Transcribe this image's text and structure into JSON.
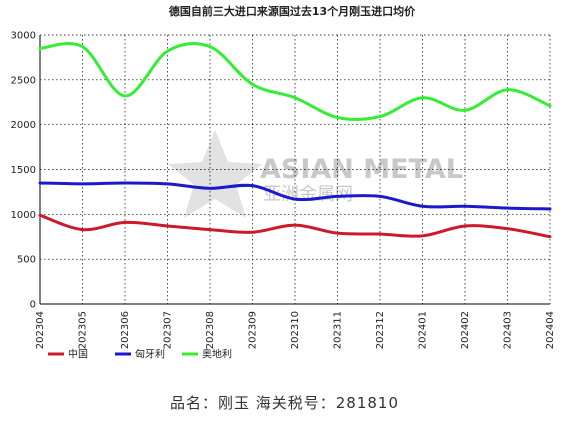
{
  "chart_data": {
    "type": "line",
    "title": "德国自前三大进口来源国过去13个月刚玉进口均价",
    "categories": [
      "202304",
      "202305",
      "202306",
      "202307",
      "202308",
      "202309",
      "202310",
      "202311",
      "202312",
      "202401",
      "202402",
      "202403",
      "202404"
    ],
    "ylim": [
      0,
      3000
    ],
    "yticks": [
      0,
      500,
      1000,
      1500,
      2000,
      2500,
      3000
    ],
    "grid": true,
    "legend_position": "bottom-left",
    "series": [
      {
        "name": "中国",
        "color": "#cc1a2a",
        "values": [
          990,
          830,
          910,
          870,
          830,
          800,
          880,
          790,
          780,
          760,
          870,
          840,
          750
        ]
      },
      {
        "name": "匈牙利",
        "color": "#1a1acc",
        "values": [
          1350,
          1340,
          1350,
          1340,
          1290,
          1320,
          1170,
          1200,
          1200,
          1090,
          1090,
          1070,
          1060
        ]
      },
      {
        "name": "奥地利",
        "color": "#33ee33",
        "values": [
          2850,
          2870,
          2320,
          2820,
          2870,
          2450,
          2300,
          2080,
          2090,
          2300,
          2160,
          2390,
          2210
        ]
      }
    ]
  },
  "watermark": {
    "brand": "ASIAN METAL",
    "brand_cn": "亚洲金属网"
  },
  "footer": {
    "text": "品名：刚玉    海关税号：281810"
  }
}
